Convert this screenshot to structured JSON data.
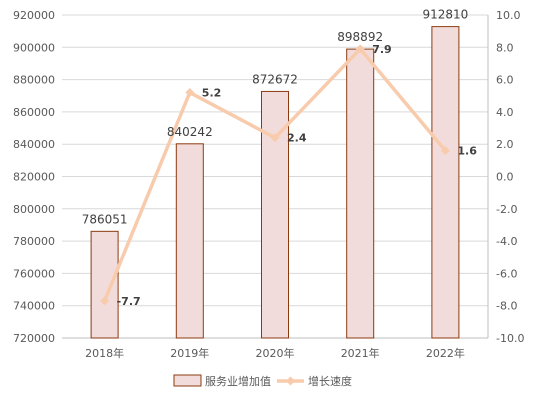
{
  "chart_data": {
    "type": "bar",
    "categories": [
      "2018年",
      "2019年",
      "2020年",
      "2021年",
      "2022年"
    ],
    "series": [
      {
        "name": "服务业增加值",
        "type": "bar",
        "axis": "left",
        "values": [
          786051,
          840242,
          872672,
          898892,
          912810
        ],
        "labels": [
          "786051",
          "840242",
          "872672",
          "898892",
          "912810"
        ],
        "color": "#f2dcdb",
        "border": "#8b3a0f"
      },
      {
        "name": "增长速度",
        "type": "line",
        "axis": "right",
        "values": [
          -7.7,
          5.2,
          2.4,
          7.9,
          1.6
        ],
        "labels": [
          "-7.7",
          "5.2",
          "2.4",
          "7.9",
          "1.6"
        ],
        "color": "#f8cbad"
      }
    ],
    "y_left": {
      "min": 720000,
      "max": 920000,
      "ticks": [
        "720000",
        "740000",
        "760000",
        "780000",
        "800000",
        "820000",
        "840000",
        "860000",
        "880000",
        "900000",
        "920000"
      ]
    },
    "y_right": {
      "min": -10,
      "max": 10,
      "ticks": [
        "-10.0",
        "-8.0",
        "-6.0",
        "-4.0",
        "-2.0",
        "0.0",
        "2.0",
        "4.0",
        "6.0",
        "8.0",
        "10.0"
      ]
    },
    "grid": true,
    "legend_position": "bottom"
  }
}
